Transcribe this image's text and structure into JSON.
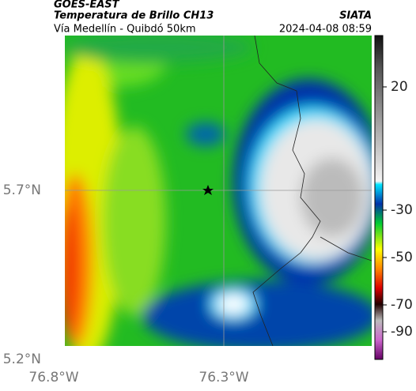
{
  "header": {
    "source": "GOES-EAST",
    "title": "Temperatura de Brillo CH13",
    "org": "SIATA",
    "route": "Vía Medellín - Quibdó 50km",
    "timestamp": "2024-04-08 08:59"
  },
  "axes": {
    "lat_labels": [
      "5.7°N",
      "5.2°N"
    ],
    "lon_labels": [
      "76.8°W",
      "76.3°W"
    ]
  },
  "colorbar": {
    "ticks": [
      20,
      -30,
      -50,
      -70,
      -90
    ]
  }
}
